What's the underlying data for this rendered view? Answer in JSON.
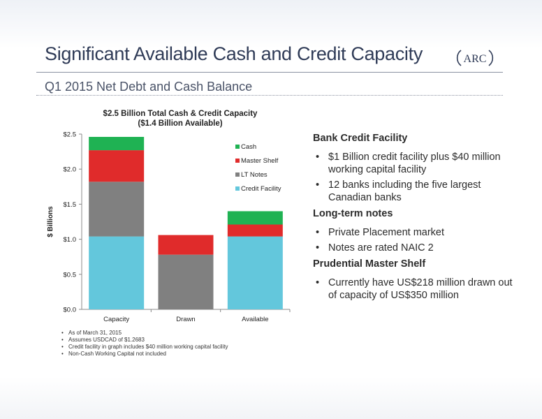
{
  "slide": {
    "title": "Significant Available Cash and Credit Capacity",
    "subtitle": "Q1 2015 Net Debt and Cash Balance",
    "logo_text": "ARC"
  },
  "chart_data": {
    "type": "bar",
    "stacked": true,
    "title_lines": [
      "$2.5 Billion Total Cash & Credit Capacity",
      "($1.4 Billion Available)"
    ],
    "ylabel": "$ Billions",
    "ylim": [
      0,
      2.5
    ],
    "yticks": [
      0,
      0.5,
      1.0,
      1.5,
      2.0,
      2.5
    ],
    "ytick_labels": [
      "$0.0",
      "$0.5",
      "$1.0",
      "$1.5",
      "$2.0",
      "$2.5"
    ],
    "categories": [
      "Capacity",
      "Drawn",
      "Available"
    ],
    "series": [
      {
        "name": "Credit Facility",
        "color": "#63c7dc",
        "values": [
          1.04,
          0,
          1.04
        ]
      },
      {
        "name": "LT Notes",
        "color": "#808080",
        "values": [
          0.78,
          0.78,
          0
        ]
      },
      {
        "name": "Master Shelf",
        "color": "#e02b2b",
        "values": [
          0.45,
          0.28,
          0.17
        ]
      },
      {
        "name": "Cash",
        "color": "#1fb253",
        "values": [
          0.19,
          0,
          0.19
        ]
      }
    ],
    "legend_order": [
      "Cash",
      "Master Shelf",
      "LT Notes",
      "Credit Facility"
    ],
    "legend_position": "right",
    "grid": false
  },
  "footnotes": [
    "As of March 31, 2015",
    "Assumes USDCAD of $1.2683",
    "Credit facility in graph includes $40 million working capital facility",
    "Non-Cash Working Capital not included"
  ],
  "sections": [
    {
      "heading": "Bank Credit Facility",
      "bullets": [
        "$1 Billion credit facility plus $40 million working capital facility",
        "12 banks including the five largest Canadian banks"
      ]
    },
    {
      "heading": "Long-term notes",
      "bullets": [
        "Private Placement market",
        "Notes are rated NAIC 2"
      ]
    },
    {
      "heading": "Prudential Master Shelf",
      "bullets": [
        "Currently have US$218 million drawn out of capacity of US$350 million"
      ]
    }
  ]
}
